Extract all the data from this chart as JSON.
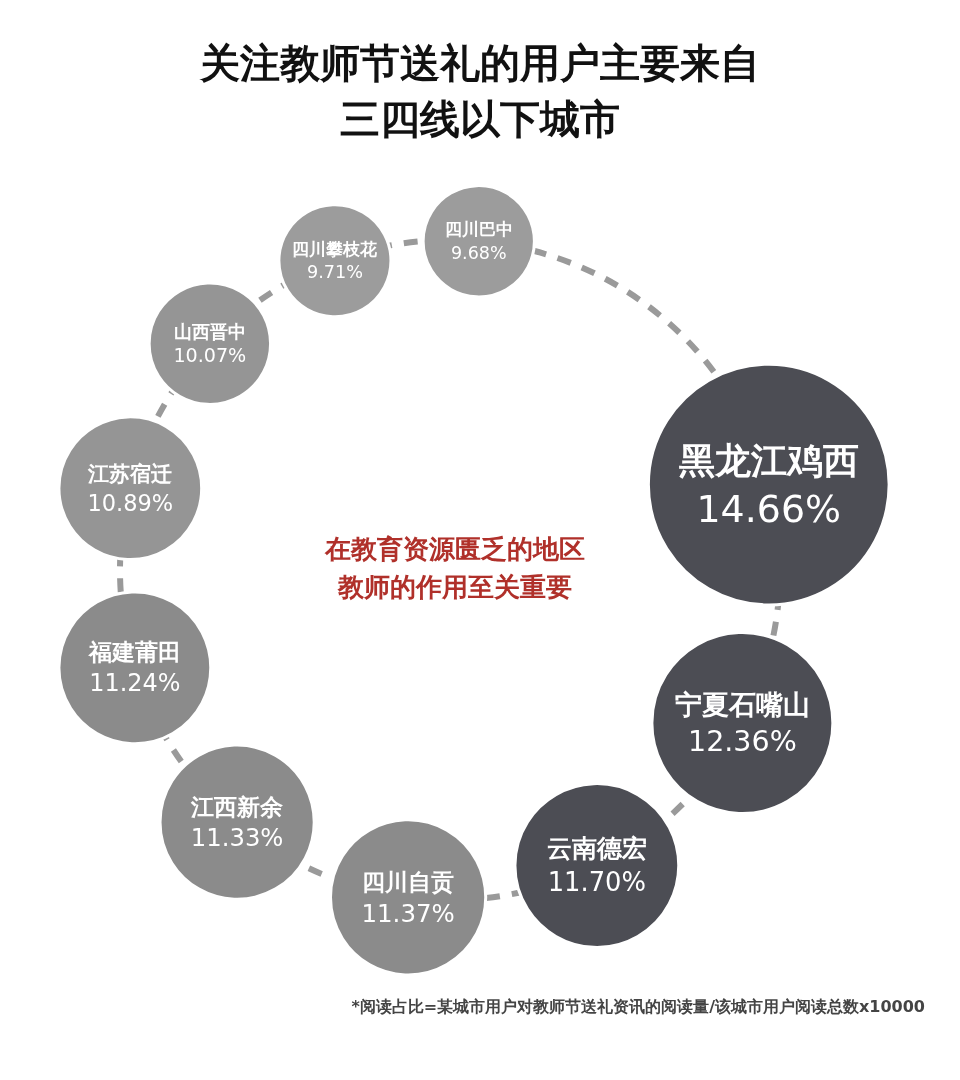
{
  "chart_data": {
    "type": "other",
    "title": "关注教师节送礼的用户主要来自三四线以下城市",
    "categories": [
      "黑龙江鸡西",
      "宁夏石嘴山",
      "云南德宏",
      "四川自贡",
      "江西新余",
      "福建莆田",
      "江苏宿迁",
      "山西晋中",
      "四川攀枝花",
      "四川巴中"
    ],
    "values": [
      14.66,
      12.36,
      11.7,
      11.37,
      11.33,
      11.24,
      10.89,
      10.07,
      9.71,
      9.68
    ],
    "value_labels": [
      "14.66%",
      "12.36%",
      "11.70%",
      "11.37%",
      "11.33%",
      "11.24%",
      "10.89%",
      "10.07%",
      "9.71%",
      "9.68%"
    ],
    "colors": [
      "#4c4d54",
      "#4c4d54",
      "#4c4d54",
      "#8b8b8b",
      "#8b8b8b",
      "#8b8b8b",
      "#959595",
      "#959595",
      "#9c9c9c",
      "#9c9c9c"
    ],
    "annotations": [
      "在教育资源匮乏的地区教师的作用至关重要",
      "*阅读占比=某城市用户对教师节送礼资讯的阅读量/该城市用户阅读总数x10000"
    ]
  }
}
